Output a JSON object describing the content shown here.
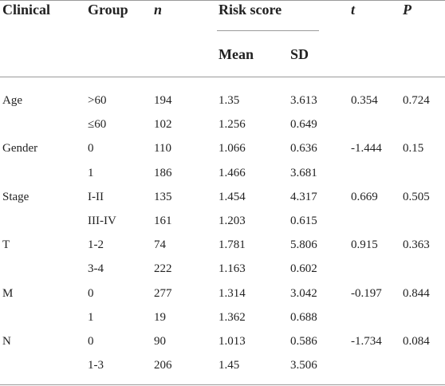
{
  "header": {
    "clinical": "Clinical",
    "group": "Group",
    "n": "n",
    "risk_score": "Risk score",
    "mean": "Mean",
    "sd": "SD",
    "t": "t",
    "p": "P"
  },
  "groups": [
    {
      "clinical": "Age",
      "t": 0.354,
      "p": 0.724,
      "rows": [
        [
          ">60",
          194,
          1.35,
          3.613
        ],
        [
          "≤60",
          102,
          1.256,
          0.649
        ]
      ]
    },
    {
      "clinical": "Gender",
      "t": -1.444,
      "p": 0.15,
      "rows": [
        [
          "0",
          110,
          1.066,
          0.636
        ],
        [
          "1",
          186,
          1.466,
          3.681
        ]
      ]
    },
    {
      "clinical": "Stage",
      "t": 0.669,
      "p": 0.505,
      "rows": [
        [
          "I-II",
          135,
          1.454,
          4.317
        ],
        [
          "III-IV",
          161,
          1.203,
          0.615
        ]
      ]
    },
    {
      "clinical": "T",
      "t": 0.915,
      "p": 0.363,
      "rows": [
        [
          "1-2",
          74,
          1.781,
          5.806
        ],
        [
          "3-4",
          222,
          1.163,
          0.602
        ]
      ]
    },
    {
      "clinical": "M",
      "t": -0.197,
      "p": 0.844,
      "rows": [
        [
          "0",
          277,
          1.314,
          3.042
        ],
        [
          "1",
          19,
          1.362,
          0.688
        ]
      ]
    },
    {
      "clinical": "N",
      "t": -1.734,
      "p": 0.084,
      "rows": [
        [
          "0",
          90,
          1.013,
          0.586
        ],
        [
          "1-3",
          206,
          1.45,
          3.506
        ]
      ]
    }
  ]
}
